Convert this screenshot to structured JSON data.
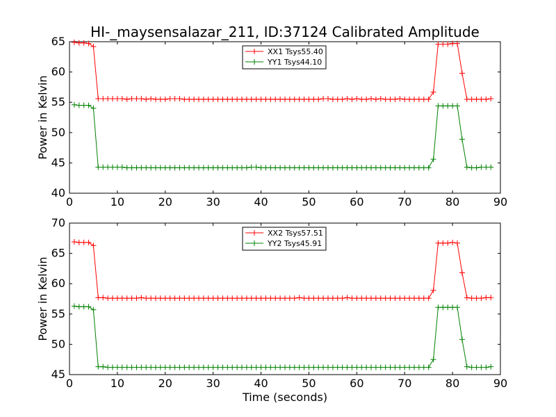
{
  "title": "HI-_maysensalazar_211, ID:37124 Calibrated Amplitude",
  "colors": {
    "red": "#ff0000",
    "green": "#008000"
  },
  "chart_data": [
    {
      "type": "line",
      "ylabel": "Power in Kelvin",
      "xlabel": "",
      "xlim": [
        0,
        90
      ],
      "ylim": [
        40,
        65
      ],
      "x_ticks": [
        0,
        10,
        20,
        30,
        40,
        50,
        60,
        70,
        80,
        90
      ],
      "y_ticks": [
        40,
        45,
        50,
        55,
        60,
        65
      ],
      "grid": false,
      "legend_position": "top-center",
      "x": [
        1,
        2,
        3,
        4,
        5,
        6,
        7,
        8,
        9,
        10,
        11,
        12,
        13,
        14,
        15,
        16,
        17,
        18,
        19,
        20,
        21,
        22,
        23,
        24,
        25,
        26,
        27,
        28,
        29,
        30,
        31,
        32,
        33,
        34,
        35,
        36,
        37,
        38,
        39,
        40,
        41,
        42,
        43,
        44,
        45,
        46,
        47,
        48,
        49,
        50,
        51,
        52,
        53,
        54,
        55,
        56,
        57,
        58,
        59,
        60,
        61,
        62,
        63,
        64,
        65,
        66,
        67,
        68,
        69,
        70,
        71,
        72,
        73,
        74,
        75,
        76,
        77,
        78,
        79,
        80,
        81,
        82,
        83,
        84,
        85,
        86,
        87,
        88
      ],
      "series": [
        {
          "name": "XX1 Tsys55.40",
          "color": "#ff0000",
          "values": [
            64.9,
            64.8,
            64.8,
            64.7,
            64.2,
            55.6,
            55.6,
            55.6,
            55.6,
            55.6,
            55.6,
            55.5,
            55.6,
            55.6,
            55.6,
            55.5,
            55.6,
            55.5,
            55.5,
            55.5,
            55.6,
            55.6,
            55.6,
            55.5,
            55.5,
            55.5,
            55.5,
            55.5,
            55.5,
            55.5,
            55.5,
            55.5,
            55.5,
            55.5,
            55.5,
            55.5,
            55.5,
            55.5,
            55.5,
            55.5,
            55.5,
            55.5,
            55.5,
            55.5,
            55.5,
            55.5,
            55.5,
            55.5,
            55.5,
            55.5,
            55.5,
            55.5,
            55.6,
            55.6,
            55.5,
            55.5,
            55.5,
            55.6,
            55.5,
            55.6,
            55.5,
            55.5,
            55.6,
            55.5,
            55.6,
            55.5,
            55.5,
            55.5,
            55.6,
            55.5,
            55.5,
            55.5,
            55.5,
            55.5,
            55.5,
            56.7,
            64.6,
            64.6,
            64.6,
            64.7,
            64.7,
            59.8,
            55.5,
            55.5,
            55.5,
            55.5,
            55.5,
            55.6
          ]
        },
        {
          "name": "YY1 Tsys44.10",
          "color": "#008000",
          "values": [
            54.6,
            54.5,
            54.5,
            54.5,
            54.0,
            44.3,
            44.3,
            44.3,
            44.3,
            44.3,
            44.3,
            44.2,
            44.2,
            44.2,
            44.2,
            44.2,
            44.2,
            44.2,
            44.2,
            44.2,
            44.2,
            44.2,
            44.2,
            44.2,
            44.2,
            44.2,
            44.2,
            44.2,
            44.2,
            44.2,
            44.2,
            44.2,
            44.2,
            44.2,
            44.2,
            44.2,
            44.2,
            44.3,
            44.3,
            44.2,
            44.2,
            44.2,
            44.2,
            44.2,
            44.2,
            44.2,
            44.2,
            44.2,
            44.2,
            44.2,
            44.2,
            44.2,
            44.2,
            44.2,
            44.2,
            44.2,
            44.2,
            44.2,
            44.2,
            44.2,
            44.2,
            44.2,
            44.2,
            44.2,
            44.2,
            44.2,
            44.2,
            44.2,
            44.2,
            44.2,
            44.2,
            44.2,
            44.2,
            44.2,
            44.2,
            45.6,
            54.4,
            54.4,
            54.4,
            54.4,
            54.4,
            48.9,
            44.3,
            44.2,
            44.2,
            44.3,
            44.3,
            44.3
          ]
        }
      ]
    },
    {
      "type": "line",
      "ylabel": "Power in Kelvin",
      "xlabel": "Time (seconds)",
      "xlim": [
        0,
        90
      ],
      "ylim": [
        45,
        70
      ],
      "x_ticks": [
        0,
        10,
        20,
        30,
        40,
        50,
        60,
        70,
        80,
        90
      ],
      "y_ticks": [
        45,
        50,
        55,
        60,
        65,
        70
      ],
      "grid": false,
      "legend_position": "top-center",
      "x": [
        1,
        2,
        3,
        4,
        5,
        6,
        7,
        8,
        9,
        10,
        11,
        12,
        13,
        14,
        15,
        16,
        17,
        18,
        19,
        20,
        21,
        22,
        23,
        24,
        25,
        26,
        27,
        28,
        29,
        30,
        31,
        32,
        33,
        34,
        35,
        36,
        37,
        38,
        39,
        40,
        41,
        42,
        43,
        44,
        45,
        46,
        47,
        48,
        49,
        50,
        51,
        52,
        53,
        54,
        55,
        56,
        57,
        58,
        59,
        60,
        61,
        62,
        63,
        64,
        65,
        66,
        67,
        68,
        69,
        70,
        71,
        72,
        73,
        74,
        75,
        76,
        77,
        78,
        79,
        80,
        81,
        82,
        83,
        84,
        85,
        86,
        87,
        88
      ],
      "series": [
        {
          "name": "XX2 Tsys57.51",
          "color": "#ff0000",
          "values": [
            66.9,
            66.8,
            66.8,
            66.8,
            66.3,
            57.7,
            57.7,
            57.6,
            57.6,
            57.6,
            57.6,
            57.6,
            57.6,
            57.6,
            57.7,
            57.6,
            57.6,
            57.6,
            57.6,
            57.6,
            57.6,
            57.6,
            57.6,
            57.6,
            57.6,
            57.6,
            57.6,
            57.6,
            57.6,
            57.6,
            57.6,
            57.6,
            57.6,
            57.6,
            57.6,
            57.6,
            57.6,
            57.6,
            57.6,
            57.6,
            57.6,
            57.6,
            57.6,
            57.6,
            57.6,
            57.6,
            57.6,
            57.7,
            57.6,
            57.6,
            57.6,
            57.6,
            57.6,
            57.6,
            57.6,
            57.6,
            57.6,
            57.7,
            57.6,
            57.6,
            57.6,
            57.6,
            57.6,
            57.6,
            57.6,
            57.6,
            57.6,
            57.6,
            57.6,
            57.6,
            57.6,
            57.6,
            57.6,
            57.6,
            57.6,
            58.9,
            66.7,
            66.7,
            66.7,
            66.8,
            66.7,
            61.8,
            57.7,
            57.6,
            57.6,
            57.6,
            57.7,
            57.7
          ]
        },
        {
          "name": "YY2 Tsys45.91",
          "color": "#008000",
          "values": [
            56.3,
            56.2,
            56.2,
            56.2,
            55.7,
            46.3,
            46.3,
            46.2,
            46.2,
            46.2,
            46.2,
            46.2,
            46.2,
            46.2,
            46.2,
            46.2,
            46.2,
            46.2,
            46.2,
            46.2,
            46.2,
            46.2,
            46.2,
            46.2,
            46.2,
            46.2,
            46.2,
            46.2,
            46.2,
            46.2,
            46.2,
            46.2,
            46.2,
            46.2,
            46.2,
            46.2,
            46.2,
            46.2,
            46.2,
            46.2,
            46.2,
            46.2,
            46.2,
            46.2,
            46.2,
            46.2,
            46.2,
            46.2,
            46.2,
            46.2,
            46.2,
            46.2,
            46.2,
            46.2,
            46.2,
            46.2,
            46.2,
            46.2,
            46.2,
            46.2,
            46.2,
            46.2,
            46.2,
            46.2,
            46.2,
            46.2,
            46.2,
            46.2,
            46.2,
            46.2,
            46.2,
            46.2,
            46.2,
            46.2,
            46.2,
            47.5,
            56.1,
            56.1,
            56.1,
            56.1,
            56.1,
            50.8,
            46.3,
            46.2,
            46.2,
            46.2,
            46.2,
            46.3
          ]
        }
      ]
    }
  ]
}
